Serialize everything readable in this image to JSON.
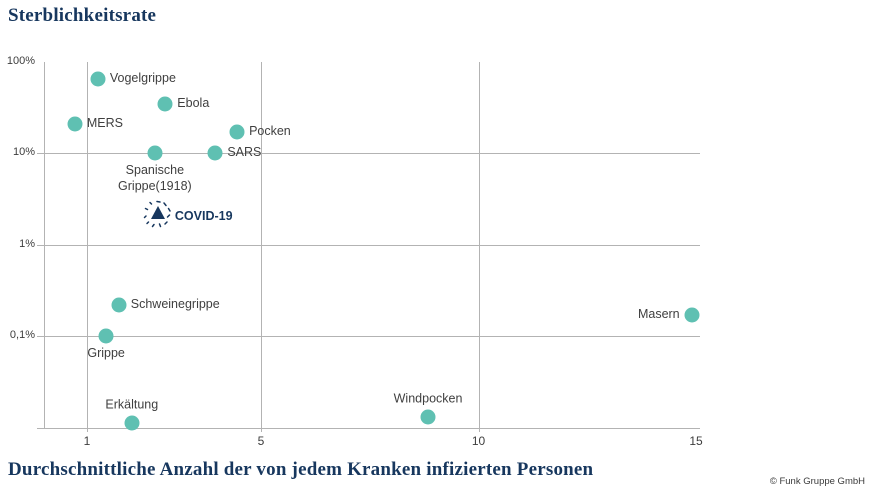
{
  "page": {
    "title": "Sterblichkeitsrate",
    "xlabel": "Durchschnittliche Anzahl der von jedem Kranken infizierten Personen",
    "copyright": "© Funk Gruppe GmbH"
  },
  "colors": {
    "accent_navy": "#17375e",
    "dot_teal": "#5fc0b2",
    "grid": "#b3b3b3",
    "label_text": "#3f3f3f"
  },
  "chart_data": {
    "type": "scatter",
    "title": "Sterblichkeitsrate",
    "xlabel": "Durchschnittliche Anzahl der von jedem Kranken infizierten Personen",
    "ylabel": "Sterblichkeitsrate (%)",
    "x_axis": {
      "scale": "linear",
      "min": 0,
      "max": 15.1,
      "ticks": [
        1,
        5,
        10,
        15
      ]
    },
    "y_axis": {
      "scale": "log",
      "unit": "%",
      "ticks_percent": [
        100,
        10,
        1,
        0.1
      ],
      "tick_labels": [
        "100%",
        "10%",
        "1%",
        "0,1%"
      ],
      "grid_ticks_percent": [
        10,
        1,
        0.1
      ]
    },
    "points": [
      {
        "name": "Vogelgrippe",
        "x": 1.25,
        "y_percent": 65,
        "label_pos": "right"
      },
      {
        "name": "Ebola",
        "x": 2.8,
        "y_percent": 35,
        "label_pos": "right"
      },
      {
        "name": "MERS",
        "x": 0.72,
        "y_percent": 21,
        "label_pos": "right"
      },
      {
        "name": "Pocken",
        "x": 4.45,
        "y_percent": 17,
        "label_pos": "right"
      },
      {
        "name": "SARS",
        "x": 3.95,
        "y_percent": 10,
        "label_pos": "right"
      },
      {
        "name": "Spanische\nGrippe(1918)",
        "x": 2.56,
        "y_percent": 10,
        "label_pos": "below"
      },
      {
        "name": "COVID-19",
        "x": 2.63,
        "y_percent": 2.0,
        "label_pos": "right",
        "marker": "virus-triangle"
      },
      {
        "name": "Schweinegrippe",
        "x": 1.73,
        "y_percent": 0.22,
        "label_pos": "right"
      },
      {
        "name": "Grippe",
        "x": 1.44,
        "y_percent": 0.1,
        "label_pos": "below"
      },
      {
        "name": "Masern",
        "x": 14.9,
        "y_percent": 0.17,
        "label_pos": "left"
      },
      {
        "name": "Windpocken",
        "x": 8.84,
        "y_percent": 0.013,
        "label_pos": "above"
      },
      {
        "name": "Erkältung",
        "x": 2.03,
        "y_percent": 0.011,
        "label_pos": "above"
      }
    ]
  }
}
